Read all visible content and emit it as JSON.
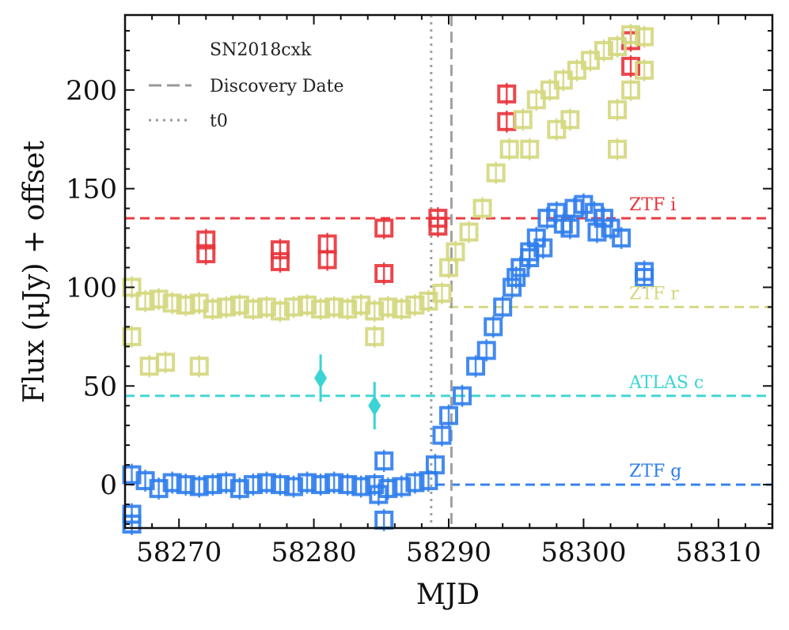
{
  "chart_data": {
    "type": "scatter",
    "title": "",
    "xlabel": "MJD",
    "ylabel": "Flux (μJy) + offset",
    "xlim": [
      58266,
      58314
    ],
    "ylim": [
      -22,
      238
    ],
    "xticks": [
      58270,
      58280,
      58290,
      58300,
      58310
    ],
    "yticks": [
      0,
      50,
      100,
      150,
      200
    ],
    "xtick_labels": [
      "58270",
      "58280",
      "58290",
      "58300",
      "58310"
    ],
    "ytick_labels": [
      "0",
      "50",
      "100",
      "150",
      "200"
    ],
    "legend": {
      "title": "SN2018cxk",
      "position": "top-left",
      "entries": [
        {
          "label": "Discovery Date",
          "style": "dashed"
        },
        {
          "label": "t0",
          "style": "dotted"
        }
      ]
    },
    "vlines": [
      {
        "name": "t0",
        "x": 58288.7,
        "style": "dotted",
        "color": "#a0a0a0"
      },
      {
        "name": "Discovery Date",
        "x": 58290.2,
        "style": "dashed",
        "color": "#a0a0a0"
      }
    ],
    "series": [
      {
        "name": "ZTF i",
        "label": "ZTF i",
        "color": "#e8333a",
        "offset": 135,
        "marker": "square",
        "hline_x_start": 58266,
        "points": [
          [
            58272,
            124
          ],
          [
            58272,
            117
          ],
          [
            58277.5,
            119
          ],
          [
            58277.5,
            113
          ],
          [
            58281,
            122
          ],
          [
            58281,
            114
          ],
          [
            58285.2,
            130
          ],
          [
            58285.2,
            107
          ],
          [
            58289.2,
            135
          ],
          [
            58289.2,
            131
          ],
          [
            58294.3,
            198
          ],
          [
            58294.3,
            184
          ],
          [
            58303.5,
            225
          ],
          [
            58303.5,
            212
          ]
        ]
      },
      {
        "name": "ZTF r",
        "label": "ZTF r",
        "color": "#d4d77d",
        "offset": 90,
        "marker": "square",
        "hline_x_start": 58290,
        "points": [
          [
            58266.5,
            100
          ],
          [
            58267.5,
            93
          ],
          [
            58268.5,
            94
          ],
          [
            58269.5,
            92
          ],
          [
            58270.5,
            91
          ],
          [
            58271.5,
            92
          ],
          [
            58272.5,
            89
          ],
          [
            58273.5,
            90
          ],
          [
            58274.5,
            91
          ],
          [
            58275.5,
            89
          ],
          [
            58276.5,
            90
          ],
          [
            58277.5,
            88
          ],
          [
            58278.5,
            90
          ],
          [
            58279.5,
            91
          ],
          [
            58280.5,
            89
          ],
          [
            58281.5,
            90
          ],
          [
            58282.5,
            89
          ],
          [
            58283.5,
            91
          ],
          [
            58284.5,
            88
          ],
          [
            58285.5,
            90
          ],
          [
            58286.5,
            89
          ],
          [
            58287.5,
            91
          ],
          [
            58288.5,
            93
          ],
          [
            58289.5,
            97
          ],
          [
            58290,
            110
          ],
          [
            58290.5,
            118
          ],
          [
            58291.5,
            128
          ],
          [
            58292.5,
            140
          ],
          [
            58293.5,
            158
          ],
          [
            58294.5,
            170
          ],
          [
            58295.5,
            185
          ],
          [
            58296.5,
            195
          ],
          [
            58297.5,
            200
          ],
          [
            58298.5,
            205
          ],
          [
            58299.5,
            210
          ],
          [
            58300.5,
            215
          ],
          [
            58301.5,
            220
          ],
          [
            58302.5,
            222
          ],
          [
            58303.5,
            228
          ],
          [
            58304.5,
            227
          ],
          [
            58266.5,
            75
          ],
          [
            58267.8,
            60
          ],
          [
            58269,
            62
          ],
          [
            58271.5,
            60
          ],
          [
            58284.5,
            75
          ],
          [
            58296,
            170
          ],
          [
            58298,
            180
          ],
          [
            58299,
            185
          ],
          [
            58302.5,
            170
          ],
          [
            58302.5,
            190
          ],
          [
            58303.5,
            200
          ],
          [
            58304.5,
            210
          ]
        ]
      },
      {
        "name": "ATLAS c",
        "label": "ATLAS c",
        "color": "#3ad4d4",
        "offset": 45,
        "marker": "diamond",
        "hline_x_start": 58266,
        "points": [
          [
            58280.5,
            54
          ],
          [
            58284.5,
            40
          ]
        ]
      },
      {
        "name": "ZTF g",
        "label": "ZTF g",
        "color": "#2f7ded",
        "offset": 0,
        "marker": "square",
        "hline_x_start": 58289,
        "points": [
          [
            58266.5,
            5
          ],
          [
            58267.5,
            2
          ],
          [
            58268.5,
            -2
          ],
          [
            58269.5,
            1
          ],
          [
            58270.5,
            0
          ],
          [
            58271.5,
            -1
          ],
          [
            58272.5,
            0
          ],
          [
            58273.5,
            1
          ],
          [
            58274.5,
            -2
          ],
          [
            58275.5,
            0
          ],
          [
            58276.5,
            1
          ],
          [
            58277.5,
            0
          ],
          [
            58278.5,
            -1
          ],
          [
            58279.5,
            1
          ],
          [
            58280.5,
            0
          ],
          [
            58281.5,
            1
          ],
          [
            58282.5,
            0
          ],
          [
            58283.5,
            -1
          ],
          [
            58284.5,
            0
          ],
          [
            58285.5,
            -2
          ],
          [
            58286.5,
            -1
          ],
          [
            58287.5,
            1
          ],
          [
            58288.5,
            2
          ],
          [
            58289,
            10
          ],
          [
            58289.5,
            25
          ],
          [
            58290,
            35
          ],
          [
            58291,
            45
          ],
          [
            58292,
            60
          ],
          [
            58292.8,
            68
          ],
          [
            58293.3,
            80
          ],
          [
            58294,
            90
          ],
          [
            58294.7,
            100
          ],
          [
            58295.3,
            110
          ],
          [
            58296,
            118
          ],
          [
            58296.5,
            125
          ],
          [
            58297.3,
            135
          ],
          [
            58298,
            138
          ],
          [
            58298.5,
            132
          ],
          [
            58299.3,
            140
          ],
          [
            58300,
            142
          ],
          [
            58300.8,
            138
          ],
          [
            58301.5,
            135
          ],
          [
            58302,
            130
          ],
          [
            58302.8,
            125
          ],
          [
            58304.5,
            108
          ],
          [
            58304.5,
            105
          ],
          [
            58266.5,
            -15
          ],
          [
            58266.5,
            -20
          ],
          [
            58285.2,
            12
          ],
          [
            58285.2,
            -18
          ],
          [
            58284.8,
            -5
          ],
          [
            58295,
            105
          ],
          [
            58296,
            115
          ],
          [
            58297,
            120
          ],
          [
            58299,
            130
          ],
          [
            58301,
            128
          ]
        ]
      }
    ]
  }
}
